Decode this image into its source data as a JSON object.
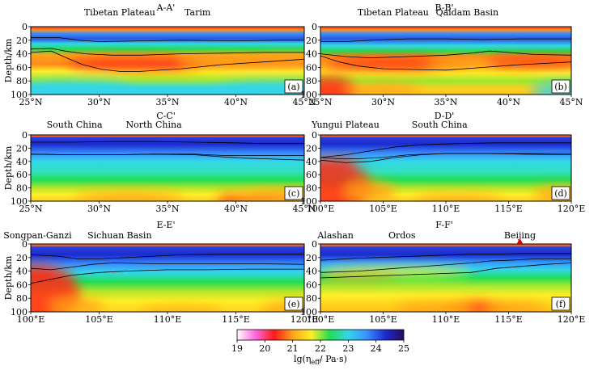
{
  "chart_data": [
    {
      "type": "heatmap",
      "profile_title": "A-A'",
      "panel_label": "(a)",
      "ylabel": "Depth/km",
      "ylim": [
        0,
        100
      ],
      "yticks": [
        0,
        20,
        40,
        60,
        80,
        100
      ],
      "xlim": [
        25,
        45
      ],
      "xticks": [
        25,
        30,
        35,
        40,
        45
      ],
      "xtick_labels": [
        "25°N",
        "30°N",
        "35°N",
        "40°N",
        "45°N"
      ],
      "regions": [
        {
          "name": "Tibetan Plateau",
          "x": 31.5
        },
        {
          "name": "Tarim",
          "x": 37.2
        }
      ],
      "boundaries": [
        {
          "name": "upper-crust interface",
          "x": [
            25,
            27,
            28.5,
            30,
            33,
            36,
            40,
            43,
            45
          ],
          "depth": [
            16,
            16,
            20,
            22,
            21,
            20,
            21,
            20,
            20
          ]
        },
        {
          "name": "Moho-1",
          "x": [
            25,
            26.5,
            27.5,
            29,
            31,
            33,
            36,
            39,
            42,
            45
          ],
          "depth": [
            33,
            32,
            36,
            40,
            42,
            42,
            40,
            39,
            38,
            38
          ]
        },
        {
          "name": "Moho-2",
          "x": [
            25,
            26.5,
            27.5,
            28.8,
            30.2,
            31.5,
            33,
            36,
            39,
            42,
            45
          ],
          "depth": [
            38,
            36,
            45,
            56,
            63,
            66,
            66,
            62,
            56,
            52,
            48
          ]
        }
      ],
      "marker": null
    },
    {
      "type": "heatmap",
      "profile_title": "B-B'",
      "panel_label": "(b)",
      "ylabel": "",
      "ylim": [
        0,
        100
      ],
      "yticks": [
        0,
        20,
        40,
        60,
        80,
        100
      ],
      "xlim": [
        25,
        45
      ],
      "xticks": [
        25,
        30,
        35,
        40,
        45
      ],
      "xtick_labels": [
        "25°N",
        "30°N",
        "35°N",
        "40°N",
        "45°N"
      ],
      "regions": [
        {
          "name": "Tibetan Plateau",
          "x": 30.8
        },
        {
          "name": "Qaidam Basin",
          "x": 36.7
        }
      ],
      "boundaries": [
        {
          "name": "upper-crust interface",
          "x": [
            25,
            27,
            29,
            32,
            35,
            38,
            41,
            45
          ],
          "depth": [
            22,
            22,
            20,
            18,
            18,
            19,
            18,
            18
          ]
        },
        {
          "name": "Moho-1",
          "x": [
            25,
            27,
            29,
            32,
            35,
            37,
            38.5,
            40,
            42,
            45
          ],
          "depth": [
            40,
            44,
            46,
            44,
            42,
            39,
            36,
            38,
            41,
            42
          ]
        },
        {
          "name": "Moho-2",
          "x": [
            25,
            26.5,
            28,
            30,
            32,
            35,
            38,
            41,
            45
          ],
          "depth": [
            43,
            52,
            58,
            62,
            63,
            64,
            60,
            56,
            52
          ]
        }
      ],
      "marker": null
    },
    {
      "type": "heatmap",
      "profile_title": "C-C'",
      "panel_label": "(c)",
      "ylabel": "Depth/km",
      "ylim": [
        0,
        100
      ],
      "yticks": [
        0,
        20,
        40,
        60,
        80,
        100
      ],
      "xlim": [
        25,
        45
      ],
      "xticks": [
        25,
        30,
        35,
        40,
        45
      ],
      "xtick_labels": [
        "25°N",
        "30°N",
        "35°N",
        "40°N",
        "45°N"
      ],
      "regions": [
        {
          "name": "South China",
          "x": 28.2
        },
        {
          "name": "North China",
          "x": 34.0
        }
      ],
      "boundaries": [
        {
          "name": "upper-crust interface",
          "x": [
            25,
            28,
            31,
            34,
            37,
            40,
            42,
            45
          ],
          "depth": [
            11,
            11,
            10,
            10,
            11,
            12,
            13,
            13
          ]
        },
        {
          "name": "Moho-1",
          "x": [
            25,
            28,
            31,
            34,
            37,
            39,
            40.5,
            42,
            45
          ],
          "depth": [
            29,
            30,
            30,
            29,
            30,
            33,
            35,
            36,
            38
          ]
        },
        {
          "name": "Moho-2",
          "x": [
            25,
            28,
            31,
            34,
            37,
            39,
            41,
            45
          ],
          "depth": [
            29,
            30,
            30,
            29,
            29,
            31,
            31,
            31
          ]
        }
      ],
      "marker": null
    },
    {
      "type": "heatmap",
      "profile_title": "D-D'",
      "panel_label": "(d)",
      "ylabel": "",
      "ylim": [
        0,
        100
      ],
      "yticks": [
        0,
        20,
        40,
        60,
        80,
        100
      ],
      "xlim": [
        100,
        120
      ],
      "xticks": [
        100,
        105,
        110,
        115,
        120
      ],
      "xtick_labels": [
        "100°E",
        "105°E",
        "110°E",
        "115°E",
        "120°E"
      ],
      "regions": [
        {
          "name": "Yungui Plateau",
          "x": 102.0
        },
        {
          "name": "South China",
          "x": 109.5
        }
      ],
      "boundaries": [
        {
          "name": "upper-crust interface",
          "x": [
            100,
            102,
            104,
            106,
            108,
            111,
            114,
            117,
            120
          ],
          "depth": [
            34,
            30,
            24,
            18,
            15,
            13,
            12,
            12,
            12
          ]
        },
        {
          "name": "Moho-1",
          "x": [
            100,
            102,
            104,
            106,
            108,
            110,
            113,
            116,
            120
          ],
          "depth": [
            38,
            42,
            40,
            34,
            30,
            28,
            28,
            29,
            30
          ]
        },
        {
          "name": "Moho-2",
          "x": [
            100,
            101.5,
            103,
            105,
            107,
            110,
            114,
            120
          ],
          "depth": [
            34,
            36,
            36,
            34,
            30,
            28,
            28,
            28
          ]
        }
      ],
      "marker": null
    },
    {
      "type": "heatmap",
      "profile_title": "E-E'",
      "panel_label": "(e)",
      "ylabel": "Depth/km",
      "ylim": [
        0,
        100
      ],
      "yticks": [
        0,
        20,
        40,
        60,
        80,
        100
      ],
      "xlim": [
        100,
        120
      ],
      "xticks": [
        100,
        105,
        110,
        115,
        120
      ],
      "xtick_labels": [
        "100°E",
        "105°E",
        "110°E",
        "115°E",
        "120°E"
      ],
      "regions": [
        {
          "name": "Songpan-Ganzi",
          "x": 100.5
        },
        {
          "name": "Sichuan Basin",
          "x": 106.5
        }
      ],
      "boundaries": [
        {
          "name": "upper-crust interface",
          "x": [
            100,
            102,
            103.5,
            105,
            108,
            111,
            114,
            117,
            120
          ],
          "depth": [
            16,
            18,
            22,
            22,
            19,
            16,
            15,
            15,
            15
          ]
        },
        {
          "name": "Moho-1",
          "x": [
            100,
            101.5,
            103,
            104.5,
            106,
            109,
            112,
            116,
            120
          ],
          "depth": [
            36,
            38,
            34,
            30,
            28,
            29,
            29,
            29,
            30
          ]
        },
        {
          "name": "Moho-2",
          "x": [
            100,
            101.5,
            103,
            105,
            107,
            110,
            113,
            116,
            120
          ],
          "depth": [
            58,
            52,
            46,
            42,
            40,
            38,
            38,
            37,
            37
          ]
        }
      ],
      "marker": null
    },
    {
      "type": "heatmap",
      "profile_title": "F-F'",
      "panel_label": "(f)",
      "ylabel": "",
      "ylim": [
        0,
        100
      ],
      "yticks": [
        0,
        20,
        40,
        60,
        80,
        100
      ],
      "xlim": [
        100,
        120
      ],
      "xticks": [
        100,
        105,
        110,
        115,
        120
      ],
      "xtick_labels": [
        "100°E",
        "105°E",
        "110°E",
        "115°E",
        "120°E"
      ],
      "regions": [
        {
          "name": "Alashan",
          "x": 101.2
        },
        {
          "name": "Ordos",
          "x": 106.5
        },
        {
          "name": "Beijing",
          "x": 115.9
        }
      ],
      "boundaries": [
        {
          "name": "upper-crust interface",
          "x": [
            100,
            103,
            106,
            109,
            112,
            114,
            116,
            118,
            120
          ],
          "depth": [
            24,
            21,
            19,
            17,
            15,
            15,
            14,
            14,
            14
          ]
        },
        {
          "name": "Moho-1",
          "x": [
            100,
            103,
            106,
            109,
            112,
            113.5,
            115,
            117,
            120
          ],
          "depth": [
            42,
            40,
            36,
            32,
            28,
            25,
            24,
            22,
            22
          ]
        },
        {
          "name": "Moho-2",
          "x": [
            100,
            103,
            106,
            109,
            112,
            114,
            116,
            118,
            120
          ],
          "depth": [
            50,
            48,
            46,
            44,
            42,
            36,
            33,
            30,
            28
          ]
        }
      ],
      "marker": {
        "name": "Beijing",
        "x": 115.9,
        "color": "#e60000"
      }
    }
  ],
  "colorbar": {
    "ticks": [
      19,
      20,
      21,
      22,
      23,
      24,
      25
    ],
    "label": "lg(η",
    "label_sub": "eff",
    "label_tail": "/ Pa·s)",
    "colors": [
      "#ffffff",
      "#ff66dd",
      "#ff1a1a",
      "#ffa319",
      "#ffef27",
      "#22dd55",
      "#33d6e8",
      "#3b90ff",
      "#1b2bd0",
      "#2a0a5e"
    ]
  }
}
